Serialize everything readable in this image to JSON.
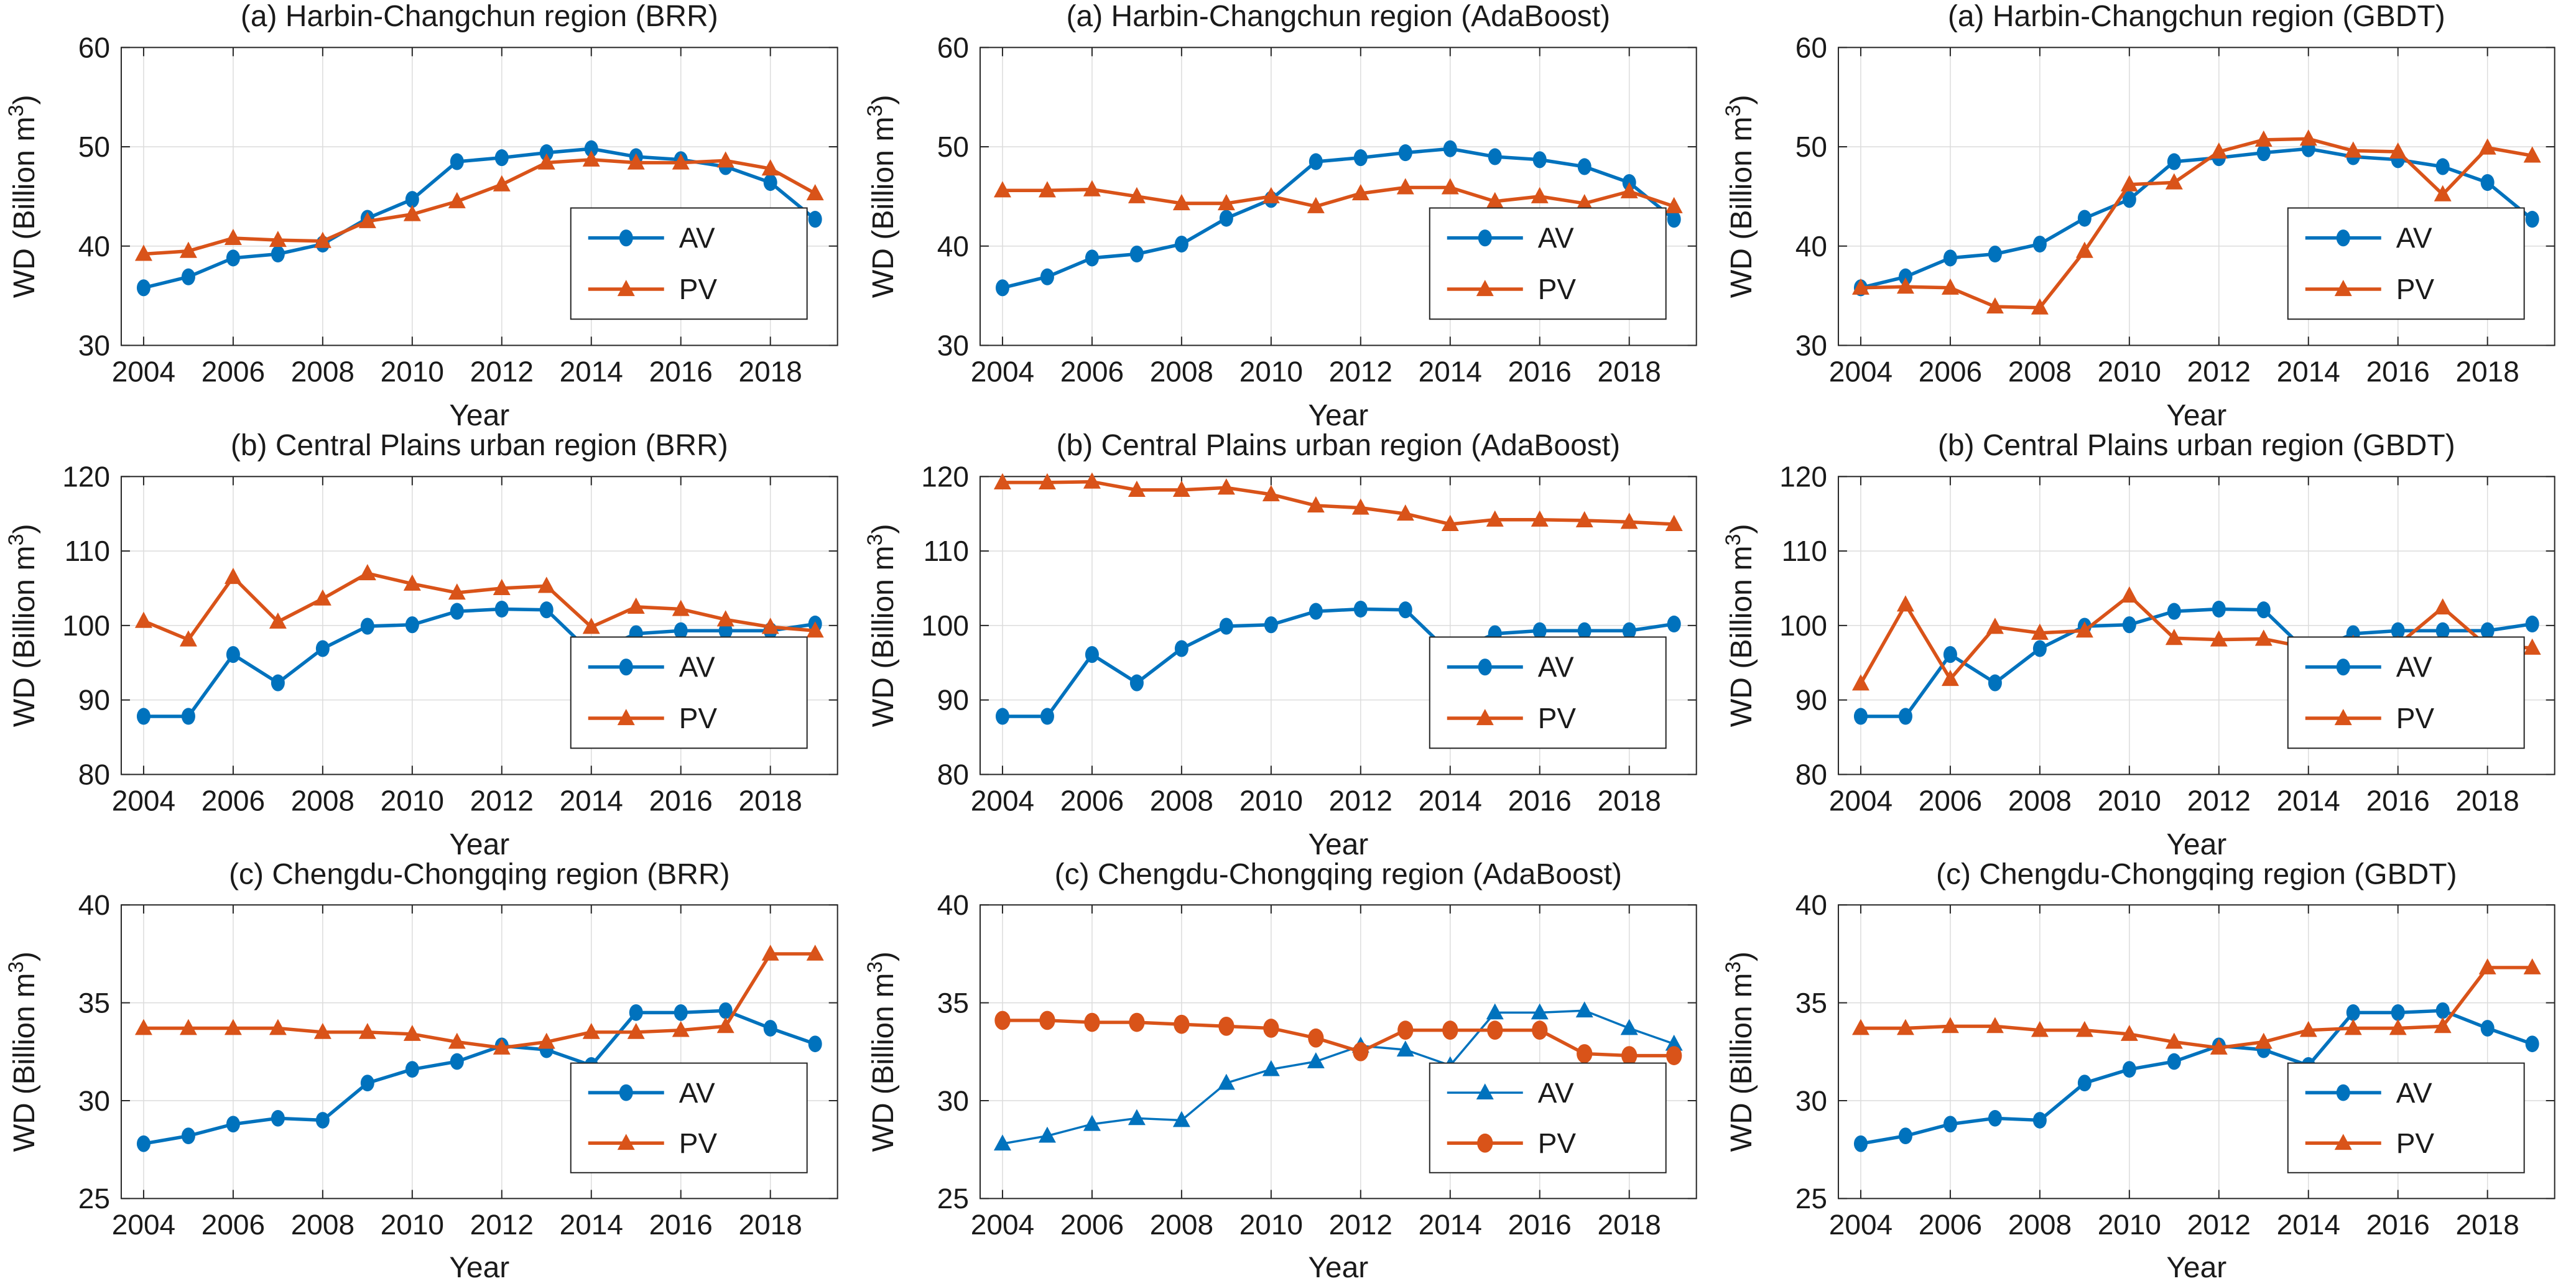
{
  "figure": {
    "background": "#ffffff",
    "axis_color": "#262626",
    "grid_color": "#dcdcdc",
    "text_color": "#1a1a1a",
    "accent_blue": "#0072BD",
    "accent_orange": "#D95319"
  },
  "x_years": [
    2004,
    2005,
    2006,
    2007,
    2008,
    2009,
    2010,
    2011,
    2012,
    2013,
    2014,
    2015,
    2016,
    2017,
    2018,
    2019
  ],
  "chart_data": [
    {
      "type": "line",
      "id": "harbin-brr",
      "title": "(a) Harbin-Changchun region (BRR)",
      "xlabel": "Year",
      "ylabel": {
        "prefix": "WD (Billion m",
        "sup": "3",
        "suffix": ")"
      },
      "xlim": [
        2003.5,
        2019.5
      ],
      "ylim": [
        30,
        60
      ],
      "xticks": [
        2004,
        2006,
        2008,
        2010,
        2012,
        2014,
        2016,
        2018
      ],
      "yticks": [
        30,
        40,
        50,
        60
      ],
      "legend_position": "lower right",
      "grid": true,
      "series": [
        {
          "name": "AV",
          "color": "#0072BD",
          "marker": "circle",
          "line_width": 5.5,
          "values": [
            35.8,
            36.9,
            38.8,
            39.2,
            40.2,
            42.8,
            44.7,
            48.5,
            48.9,
            49.4,
            49.8,
            49.0,
            48.7,
            48.0,
            46.4,
            42.7
          ]
        },
        {
          "name": "PV",
          "color": "#D95319",
          "marker": "triangle",
          "line_width": 5.5,
          "values": [
            39.2,
            39.5,
            40.8,
            40.6,
            40.5,
            42.5,
            43.2,
            44.5,
            46.2,
            48.4,
            48.7,
            48.4,
            48.4,
            48.6,
            47.8,
            45.3
          ]
        }
      ]
    },
    {
      "type": "line",
      "id": "harbin-adaboost",
      "title": "(a) Harbin-Changchun region (AdaBoost)",
      "xlabel": "Year",
      "ylabel": {
        "prefix": "WD (Billion m",
        "sup": "3",
        "suffix": ")"
      },
      "xlim": [
        2003.5,
        2019.5
      ],
      "ylim": [
        30,
        60
      ],
      "xticks": [
        2004,
        2006,
        2008,
        2010,
        2012,
        2014,
        2016,
        2018
      ],
      "yticks": [
        30,
        40,
        50,
        60
      ],
      "legend_position": "lower right",
      "grid": true,
      "series": [
        {
          "name": "AV",
          "color": "#0072BD",
          "marker": "circle",
          "line_width": 5.5,
          "values": [
            35.8,
            36.9,
            38.8,
            39.2,
            40.2,
            42.8,
            44.7,
            48.5,
            48.9,
            49.4,
            49.8,
            49.0,
            48.7,
            48.0,
            46.4,
            42.7
          ]
        },
        {
          "name": "PV",
          "color": "#D95319",
          "marker": "triangle",
          "line_width": 5.5,
          "values": [
            45.6,
            45.6,
            45.7,
            45.0,
            44.3,
            44.3,
            45.0,
            44.0,
            45.3,
            45.9,
            45.9,
            44.5,
            45.0,
            44.3,
            45.5,
            44.0
          ]
        }
      ]
    },
    {
      "type": "line",
      "id": "harbin-gbdt",
      "title": "(a) Harbin-Changchun region (GBDT)",
      "xlabel": "Year",
      "ylabel": {
        "prefix": "WD (Billion m",
        "sup": "3",
        "suffix": ")"
      },
      "xlim": [
        2003.5,
        2019.5
      ],
      "ylim": [
        30,
        60
      ],
      "xticks": [
        2004,
        2006,
        2008,
        2010,
        2012,
        2014,
        2016,
        2018
      ],
      "yticks": [
        30,
        40,
        50,
        60
      ],
      "legend_position": "lower right",
      "grid": true,
      "series": [
        {
          "name": "AV",
          "color": "#0072BD",
          "marker": "circle",
          "line_width": 5.5,
          "values": [
            35.8,
            36.9,
            38.8,
            39.2,
            40.2,
            42.8,
            44.7,
            48.5,
            48.9,
            49.4,
            49.8,
            49.0,
            48.7,
            48.0,
            46.4,
            42.7
          ]
        },
        {
          "name": "PV",
          "color": "#D95319",
          "marker": "triangle",
          "line_width": 5.5,
          "values": [
            35.8,
            35.9,
            35.8,
            33.9,
            33.8,
            39.5,
            46.2,
            46.4,
            49.5,
            50.7,
            50.8,
            49.6,
            49.5,
            45.2,
            49.9,
            49.1
          ]
        }
      ]
    },
    {
      "type": "line",
      "id": "centralplains-brr",
      "title": "(b) Central Plains urban region (BRR)",
      "xlabel": "Year",
      "ylabel": {
        "prefix": "WD (Billion m",
        "sup": "3",
        "suffix": ")"
      },
      "xlim": [
        2003.5,
        2019.5
      ],
      "ylim": [
        80,
        120
      ],
      "xticks": [
        2004,
        2006,
        2008,
        2010,
        2012,
        2014,
        2016,
        2018
      ],
      "yticks": [
        80,
        90,
        100,
        110,
        120
      ],
      "legend_position": "lower right",
      "grid": true,
      "series": [
        {
          "name": "AV",
          "color": "#0072BD",
          "marker": "circle",
          "line_width": 5.5,
          "values": [
            87.8,
            87.8,
            96.1,
            92.3,
            96.9,
            99.9,
            100.1,
            101.9,
            102.2,
            102.1,
            96.3,
            98.9,
            99.3,
            99.3,
            99.3,
            100.2
          ]
        },
        {
          "name": "PV",
          "color": "#D95319",
          "marker": "triangle",
          "line_width": 5.5,
          "values": [
            100.6,
            98.1,
            106.5,
            100.5,
            103.6,
            107.0,
            105.6,
            104.4,
            105.0,
            105.3,
            99.8,
            102.5,
            102.2,
            100.8,
            99.8,
            99.3
          ]
        }
      ]
    },
    {
      "type": "line",
      "id": "centralplains-adaboost",
      "title": "(b) Central Plains urban region (AdaBoost)",
      "xlabel": "Year",
      "ylabel": {
        "prefix": "WD (Billion m",
        "sup": "3",
        "suffix": ")"
      },
      "xlim": [
        2003.5,
        2019.5
      ],
      "ylim": [
        80,
        120
      ],
      "xticks": [
        2004,
        2006,
        2008,
        2010,
        2012,
        2014,
        2016,
        2018
      ],
      "yticks": [
        80,
        90,
        100,
        110,
        120
      ],
      "legend_position": "lower right",
      "grid": true,
      "series": [
        {
          "name": "AV",
          "color": "#0072BD",
          "marker": "circle",
          "line_width": 5.5,
          "values": [
            87.8,
            87.8,
            96.1,
            92.3,
            96.9,
            99.9,
            100.1,
            101.9,
            102.2,
            102.1,
            96.3,
            98.9,
            99.3,
            99.3,
            99.3,
            100.2
          ]
        },
        {
          "name": "PV",
          "color": "#D95319",
          "marker": "triangle",
          "line_width": 5.5,
          "values": [
            119.2,
            119.2,
            119.3,
            118.2,
            118.2,
            118.5,
            117.6,
            116.1,
            115.8,
            115.0,
            113.6,
            114.2,
            114.2,
            114.1,
            113.9,
            113.6
          ]
        }
      ]
    },
    {
      "type": "line",
      "id": "centralplains-gbdt",
      "title": "(b) Central Plains urban region  (GBDT)",
      "xlabel": "Year",
      "ylabel": {
        "prefix": "WD (Billion m",
        "sup": "3",
        "suffix": ")"
      },
      "xlim": [
        2003.5,
        2019.5
      ],
      "ylim": [
        80,
        120
      ],
      "xticks": [
        2004,
        2006,
        2008,
        2010,
        2012,
        2014,
        2016,
        2018
      ],
      "yticks": [
        80,
        90,
        100,
        110,
        120
      ],
      "legend_position": "lower right",
      "grid": true,
      "series": [
        {
          "name": "AV",
          "color": "#0072BD",
          "marker": "circle",
          "line_width": 5.5,
          "values": [
            87.8,
            87.8,
            96.1,
            92.3,
            96.9,
            99.9,
            100.1,
            101.9,
            102.2,
            102.1,
            96.3,
            98.9,
            99.3,
            99.3,
            99.3,
            100.2
          ]
        },
        {
          "name": "PV",
          "color": "#D95319",
          "marker": "triangle",
          "line_width": 5.5,
          "values": [
            92.2,
            102.8,
            92.8,
            99.8,
            99.0,
            99.3,
            104.0,
            98.3,
            98.1,
            98.2,
            97.0,
            97.5,
            97.4,
            102.4,
            97.2,
            97.0
          ]
        }
      ]
    },
    {
      "type": "line",
      "id": "chengdu-brr",
      "title": "(c) Chengdu-Chongqing region (BRR)",
      "xlabel": "Year",
      "ylabel": {
        "prefix": "WD (Billion m",
        "sup": "3",
        "suffix": ")"
      },
      "xlim": [
        2003.5,
        2019.5
      ],
      "ylim": [
        25,
        40
      ],
      "xticks": [
        2004,
        2006,
        2008,
        2010,
        2012,
        2014,
        2016,
        2018
      ],
      "yticks": [
        25,
        30,
        35,
        40
      ],
      "legend_position": "lower right",
      "grid": true,
      "series": [
        {
          "name": "AV",
          "color": "#0072BD",
          "marker": "circle",
          "line_width": 5.5,
          "values": [
            27.8,
            28.2,
            28.8,
            29.1,
            29.0,
            30.9,
            31.6,
            32.0,
            32.8,
            32.6,
            31.8,
            34.5,
            34.5,
            34.6,
            33.7,
            32.9
          ]
        },
        {
          "name": "PV",
          "color": "#D95319",
          "marker": "triangle",
          "line_width": 5.5,
          "values": [
            33.7,
            33.7,
            33.7,
            33.7,
            33.5,
            33.5,
            33.4,
            33.0,
            32.7,
            33.0,
            33.5,
            33.5,
            33.6,
            33.8,
            37.5,
            37.5
          ]
        }
      ]
    },
    {
      "type": "line",
      "id": "chengdu-adaboost",
      "title": "(c) Chengdu-Chongqing region (AdaBoost)",
      "xlabel": "Year",
      "ylabel": {
        "prefix": "WD (Billion m",
        "sup": "3",
        "suffix": ")"
      },
      "xlim": [
        2003.5,
        2019.5
      ],
      "ylim": [
        25,
        40
      ],
      "xticks": [
        2004,
        2006,
        2008,
        2010,
        2012,
        2014,
        2016,
        2018
      ],
      "yticks": [
        25,
        30,
        35,
        40
      ],
      "legend_position": "lower right",
      "grid": true,
      "series": [
        {
          "name": "AV",
          "color": "#0072BD",
          "marker": "triangle",
          "line_width": 3.5,
          "values": [
            27.8,
            28.2,
            28.8,
            29.1,
            29.0,
            30.9,
            31.6,
            32.0,
            32.8,
            32.6,
            31.8,
            34.5,
            34.5,
            34.6,
            33.7,
            32.9
          ]
        },
        {
          "name": "PV",
          "color": "#D95319",
          "marker": "circle",
          "line_width": 5.5,
          "marker_scale": 1.15,
          "values": [
            34.1,
            34.1,
            34.0,
            34.0,
            33.9,
            33.8,
            33.7,
            33.2,
            32.5,
            33.6,
            33.6,
            33.6,
            33.6,
            32.4,
            32.3,
            32.3
          ]
        }
      ]
    },
    {
      "type": "line",
      "id": "chengdu-gbdt",
      "title": "(c) Chengdu-Chongqing region (GBDT)",
      "xlabel": "Year",
      "ylabel": {
        "prefix": "WD (Billion m",
        "sup": "3",
        "suffix": ")"
      },
      "xlim": [
        2003.5,
        2019.5
      ],
      "ylim": [
        25,
        40
      ],
      "xticks": [
        2004,
        2006,
        2008,
        2010,
        2012,
        2014,
        2016,
        2018
      ],
      "yticks": [
        25,
        30,
        35,
        40
      ],
      "legend_position": "lower right",
      "grid": true,
      "series": [
        {
          "name": "AV",
          "color": "#0072BD",
          "marker": "circle",
          "line_width": 5.5,
          "values": [
            27.8,
            28.2,
            28.8,
            29.1,
            29.0,
            30.9,
            31.6,
            32.0,
            32.8,
            32.6,
            31.8,
            34.5,
            34.5,
            34.6,
            33.7,
            32.9
          ]
        },
        {
          "name": "PV",
          "color": "#D95319",
          "marker": "triangle",
          "line_width": 5.5,
          "values": [
            33.7,
            33.7,
            33.8,
            33.8,
            33.6,
            33.6,
            33.4,
            33.0,
            32.7,
            33.0,
            33.6,
            33.7,
            33.7,
            33.8,
            36.8,
            36.8
          ]
        }
      ]
    }
  ]
}
